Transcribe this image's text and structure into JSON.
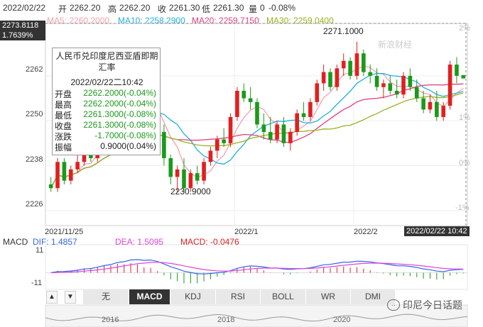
{
  "header": {
    "date": "2022/02/22",
    "open_label": "开",
    "open": "2262.20",
    "high_label": "高",
    "high": "2262.20",
    "close_label": "收",
    "close": "2261.30",
    "low_label": "低",
    "low": "2261.30",
    "vol_label": "量",
    "vol": "0",
    "change": "-0.08%"
  },
  "ma_legend": {
    "ma5": "MA5: 2260.2000",
    "ma10": "MA10: 2258.2900",
    "ma20": "MA20: 2259.7150",
    "ma30": "MA30: 2259.0400"
  },
  "colors": {
    "up": "#e02020",
    "down": "#1a9a1a",
    "ma5": "#f4a0b0",
    "ma10": "#20b0e0",
    "ma20": "#e0407a",
    "ma30": "#9ab020",
    "dif": "#3366ee",
    "dea": "#dd44dd"
  },
  "axis": {
    "prices": [
      "2262",
      "2250",
      "2238",
      "2226"
    ],
    "pcts": [
      "2%",
      "1%",
      "0%",
      "-1%"
    ],
    "crosshair_price": "2273.8118",
    "crosshair_pct": "1.7639%",
    "dates": [
      "2021/11/25",
      "2022/1",
      "2022/2"
    ],
    "crosshair_date": "2022/02/22 10:42",
    "max_label": "2271.1000",
    "min_label": "2230.9000"
  },
  "tooltip": {
    "title": "人民币兑印度尼西亚盾即期汇率",
    "datetime": "2022/02/22二10:42",
    "rows": [
      {
        "k": "开盘",
        "v": "2262.2000(-0.04%)"
      },
      {
        "k": "最高",
        "v": "2262.2000(-0.04%)"
      },
      {
        "k": "最低",
        "v": "2261.3000(-0.08%)"
      },
      {
        "k": "收盘",
        "v": "2261.3000(-0.08%)"
      },
      {
        "k": "涨跌",
        "v": "-1.7000(-0.08%)"
      },
      {
        "k": "振幅",
        "v": "0.9000(0.04%)"
      }
    ]
  },
  "macd": {
    "title": "MACD",
    "dif": "DIF: 1.4857",
    "dea": "DEA: 1.5095",
    "macd": "MACD: -0.0476",
    "top_label": "11",
    "bottom_label": "-11"
  },
  "tabs": [
    "无",
    "MACD",
    "KDJ",
    "RSI",
    "BOLL",
    "WR",
    "DMI"
  ],
  "active_tab": "MACD",
  "nav": {
    "years": [
      "2016",
      "2018",
      "2020"
    ],
    "up": "▲",
    "down": "▼"
  },
  "watermark": {
    "logo": "新浪财经",
    "brand": "印尼今日话题"
  },
  "chart_data": {
    "type": "candlestick",
    "ylim": [
      2222,
      2276
    ],
    "candles": [
      [
        2233,
        2235,
        2231,
        2232
      ],
      [
        2232,
        2240,
        2231,
        2239
      ],
      [
        2239,
        2240,
        2233,
        2234
      ],
      [
        2234,
        2238,
        2233,
        2237
      ],
      [
        2237,
        2241,
        2236,
        2239
      ],
      [
        2239,
        2244,
        2238,
        2243
      ],
      [
        2243,
        2245,
        2239,
        2240
      ],
      [
        2240,
        2247,
        2239,
        2246
      ],
      [
        2246,
        2251,
        2245,
        2250
      ],
      [
        2250,
        2254,
        2248,
        2249
      ],
      [
        2249,
        2258,
        2248,
        2257
      ],
      [
        2257,
        2259,
        2252,
        2253
      ],
      [
        2253,
        2262,
        2252,
        2260
      ],
      [
        2260,
        2262,
        2254,
        2255
      ],
      [
        2255,
        2256,
        2249,
        2250
      ],
      [
        2250,
        2257,
        2249,
        2256
      ],
      [
        2256,
        2257,
        2246,
        2247
      ],
      [
        2247,
        2249,
        2238,
        2240
      ],
      [
        2240,
        2241,
        2233,
        2235
      ],
      [
        2235,
        2238,
        2231,
        2237
      ],
      [
        2237,
        2240,
        2230.9,
        2232
      ],
      [
        2232,
        2237,
        2231,
        2236
      ],
      [
        2236,
        2238,
        2233,
        2234
      ],
      [
        2234,
        2240,
        2233,
        2239
      ],
      [
        2239,
        2243,
        2238,
        2242
      ],
      [
        2242,
        2246,
        2240,
        2245
      ],
      [
        2245,
        2248,
        2243,
        2244
      ],
      [
        2244,
        2252,
        2243,
        2251
      ],
      [
        2251,
        2259,
        2250,
        2258
      ],
      [
        2258,
        2260,
        2255,
        2256
      ],
      [
        2256,
        2259,
        2253,
        2255
      ],
      [
        2255,
        2256,
        2248,
        2249
      ],
      [
        2249,
        2252,
        2245,
        2247
      ],
      [
        2247,
        2251,
        2244,
        2245
      ],
      [
        2245,
        2250,
        2244,
        2249
      ],
      [
        2249,
        2251,
        2243,
        2244
      ],
      [
        2244,
        2248,
        2242,
        2247
      ],
      [
        2247,
        2253,
        2246,
        2252
      ],
      [
        2252,
        2255,
        2250,
        2251
      ],
      [
        2251,
        2256,
        2250,
        2255
      ],
      [
        2255,
        2261,
        2254,
        2260
      ],
      [
        2260,
        2265,
        2258,
        2263
      ],
      [
        2263,
        2264,
        2258,
        2259
      ],
      [
        2259,
        2265,
        2258,
        2264
      ],
      [
        2264,
        2268,
        2262,
        2266
      ],
      [
        2266,
        2267,
        2261,
        2262
      ],
      [
        2262,
        2271.1,
        2261,
        2268
      ],
      [
        2268,
        2269,
        2262,
        2263
      ],
      [
        2263,
        2265,
        2260,
        2262
      ],
      [
        2262,
        2264,
        2258,
        2259
      ],
      [
        2259,
        2261,
        2256,
        2260
      ],
      [
        2260,
        2262,
        2257,
        2258
      ],
      [
        2258,
        2261,
        2256,
        2257
      ],
      [
        2257,
        2263,
        2256,
        2262
      ],
      [
        2262,
        2264,
        2258,
        2259
      ],
      [
        2259,
        2261,
        2255,
        2256
      ],
      [
        2256,
        2258,
        2252,
        2253
      ],
      [
        2253,
        2257,
        2252,
        2255
      ],
      [
        2255,
        2258,
        2250,
        2251
      ],
      [
        2251,
        2255,
        2250,
        2254
      ],
      [
        2254,
        2266,
        2253,
        2265
      ],
      [
        2265,
        2267,
        2260,
        2262
      ],
      [
        2262.2,
        2262.2,
        2261.3,
        2261.3
      ]
    ]
  }
}
